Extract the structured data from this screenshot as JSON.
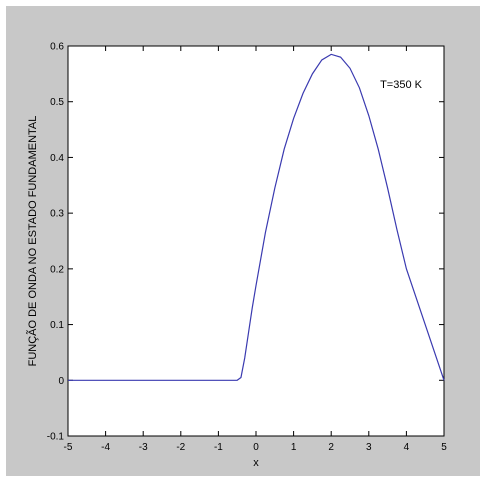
{
  "chart_data": {
    "type": "line",
    "title": "",
    "xlabel": "x",
    "ylabel": "FUNÇÃO DE ONDA NO ESTADO FUNDAMENTAL",
    "xlim": [
      -5,
      5
    ],
    "ylim": [
      -0.1,
      0.6
    ],
    "xticks": [
      -5,
      -4,
      -3,
      -2,
      -1,
      0,
      1,
      2,
      3,
      4,
      5
    ],
    "yticks": [
      -0.1,
      0,
      0.1,
      0.2,
      0.3,
      0.4,
      0.5,
      0.6
    ],
    "xtick_labels": [
      "-5",
      "-4",
      "-3",
      "-2",
      "-1",
      "0",
      "1",
      "2",
      "3",
      "4",
      "5"
    ],
    "ytick_labels": [
      "-0.1",
      "0",
      "0.1",
      "0.2",
      "0.3",
      "0.4",
      "0.5",
      "0.6"
    ],
    "grid": false,
    "annotation": "T=350 K",
    "series": [
      {
        "x": [
          -5,
          -4,
          -3,
          -2,
          -1,
          -0.5,
          -0.4,
          -0.3,
          -0.2,
          -0.1,
          0,
          0.25,
          0.5,
          0.75,
          1,
          1.25,
          1.5,
          1.75,
          2,
          2.25,
          2.5,
          2.75,
          3,
          3.25,
          3.5,
          3.75,
          4,
          4.25,
          4.5,
          4.75,
          5
        ],
        "y": [
          0,
          0,
          0,
          0,
          0,
          0,
          0.005,
          0.04,
          0.085,
          0.13,
          0.17,
          0.265,
          0.345,
          0.415,
          0.47,
          0.515,
          0.55,
          0.575,
          0.585,
          0.58,
          0.56,
          0.525,
          0.475,
          0.415,
          0.345,
          0.27,
          0.2,
          0.15,
          0.1,
          0.05,
          0
        ],
        "color": "#3a3ab0"
      }
    ]
  }
}
